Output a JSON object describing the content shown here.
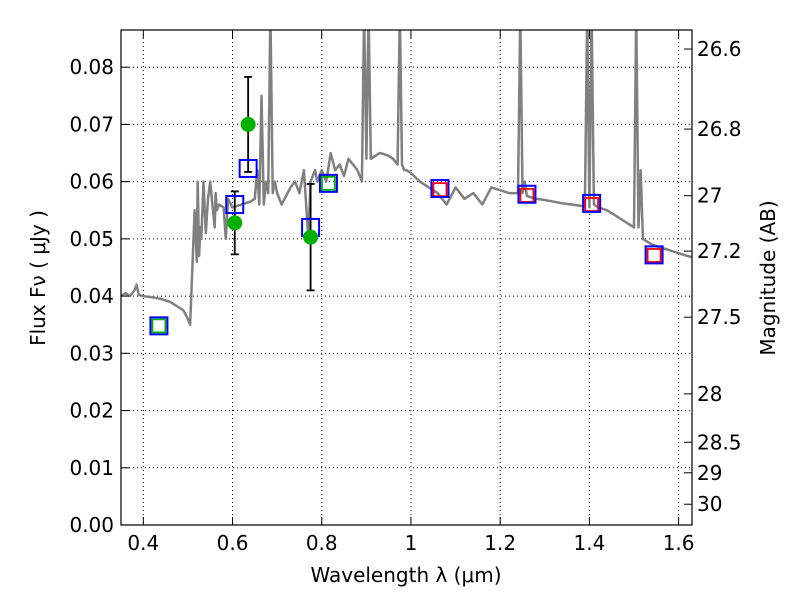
{
  "chart_data": {
    "type": "line",
    "xlabel": "Wavelength  λ (μm)",
    "ylabel": "Flux  Fν  ( μJy )",
    "ylabel_right": "Magnitude (AB)",
    "xlim": [
      0.35,
      1.63
    ],
    "ylim": [
      0.0,
      0.0865
    ],
    "grid": true,
    "x_ticks": [
      0.4,
      0.6,
      0.8,
      1.0,
      1.2,
      1.4,
      1.6
    ],
    "x_tick_labels": [
      "0.4",
      "0.6",
      "0.8",
      "1",
      "1.2",
      "1.4",
      "1.6"
    ],
    "y_ticks": [
      0.0,
      0.01,
      0.02,
      0.03,
      0.04,
      0.05,
      0.06,
      0.07,
      0.08
    ],
    "y_tick_labels": [
      "0.00",
      "0.01",
      "0.02",
      "0.03",
      "0.04",
      "0.05",
      "0.06",
      "0.07",
      "0.08"
    ],
    "mag_ticks": [
      26.6,
      26.8,
      27,
      27.2,
      27.5,
      28,
      28.5,
      29,
      30
    ],
    "mag_tick_labels": [
      "26.6",
      "26.8",
      "27",
      "27.2",
      "27.5",
      "28",
      "28.5",
      "29",
      "30"
    ],
    "series": [
      {
        "kind": "model_sed",
        "color": "#808080",
        "x": [
          0.35,
          0.36,
          0.37,
          0.38,
          0.385,
          0.39,
          0.4,
          0.42,
          0.44,
          0.46,
          0.48,
          0.49,
          0.5,
          0.505,
          0.51,
          0.515,
          0.52,
          0.522,
          0.525,
          0.528,
          0.53,
          0.535,
          0.54,
          0.545,
          0.55,
          0.555,
          0.56,
          0.562,
          0.565,
          0.57,
          0.58,
          0.585,
          0.59,
          0.6,
          0.62,
          0.64,
          0.65,
          0.655,
          0.66,
          0.665,
          0.67,
          0.675,
          0.68,
          0.685,
          0.69,
          0.695,
          0.7,
          0.71,
          0.72,
          0.73,
          0.74,
          0.75,
          0.76,
          0.77,
          0.775,
          0.78,
          0.785,
          0.79,
          0.8,
          0.81,
          0.82,
          0.83,
          0.84,
          0.85,
          0.86,
          0.87,
          0.88,
          0.89,
          0.895,
          0.9,
          0.905,
          0.91,
          0.92,
          0.93,
          0.94,
          0.95,
          0.96,
          0.97,
          0.975,
          0.98,
          0.985,
          0.99,
          1.0,
          1.02,
          1.04,
          1.06,
          1.08,
          1.1,
          1.12,
          1.14,
          1.16,
          1.18,
          1.2,
          1.22,
          1.24,
          1.245,
          1.25,
          1.255,
          1.26,
          1.28,
          1.3,
          1.32,
          1.34,
          1.36,
          1.38,
          1.39,
          1.395,
          1.4,
          1.405,
          1.41,
          1.42,
          1.44,
          1.46,
          1.48,
          1.5,
          1.505,
          1.51,
          1.515,
          1.52,
          1.54,
          1.56,
          1.58,
          1.6,
          1.62,
          1.63
        ],
        "y": [
          0.04,
          0.0405,
          0.04,
          0.041,
          0.042,
          0.0402,
          0.04,
          0.0398,
          0.0395,
          0.039,
          0.038,
          0.0375,
          0.036,
          0.035,
          0.045,
          0.055,
          0.046,
          0.06,
          0.047,
          0.052,
          0.05,
          0.06,
          0.051,
          0.057,
          0.06,
          0.056,
          0.052,
          0.058,
          0.055,
          0.056,
          0.0555,
          0.05,
          0.057,
          0.0555,
          0.056,
          0.0565,
          0.057,
          0.062,
          0.056,
          0.075,
          0.056,
          0.06,
          0.058,
          0.09,
          0.058,
          0.06,
          0.058,
          0.056,
          0.0575,
          0.059,
          0.06,
          0.058,
          0.062,
          0.05,
          0.06,
          0.061,
          0.062,
          0.06,
          0.062,
          0.06,
          0.065,
          0.062,
          0.063,
          0.061,
          0.064,
          0.063,
          0.062,
          0.06,
          0.09,
          0.064,
          0.09,
          0.064,
          0.0645,
          0.065,
          0.0648,
          0.0645,
          0.064,
          0.063,
          0.09,
          0.063,
          0.062,
          0.062,
          0.0615,
          0.06,
          0.059,
          0.058,
          0.056,
          0.059,
          0.057,
          0.058,
          0.056,
          0.059,
          0.0585,
          0.058,
          0.058,
          0.09,
          0.058,
          0.06,
          0.0575,
          0.057,
          0.0568,
          0.0565,
          0.0562,
          0.056,
          0.0558,
          0.0556,
          0.09,
          0.0555,
          0.09,
          0.056,
          0.0555,
          0.055,
          0.054,
          0.053,
          0.052,
          0.09,
          0.052,
          0.062,
          0.05,
          0.049,
          0.0485,
          0.048,
          0.0475,
          0.047,
          0.0468
        ]
      },
      {
        "kind": "observed_photometry",
        "color": "#00b000",
        "x": [
          0.605,
          0.635,
          0.775
        ],
        "y": [
          0.0528,
          0.07,
          0.0503
        ],
        "yerr": [
          0.0055,
          0.0083,
          0.0093
        ]
      },
      {
        "kind": "model_bandpass_blue",
        "color": "#0000ff",
        "x": [
          0.435,
          0.605,
          0.635,
          0.775,
          0.815,
          1.065,
          1.26,
          1.405,
          1.545
        ],
        "y": [
          0.0348,
          0.056,
          0.0623,
          0.052,
          0.0597,
          0.0588,
          0.0578,
          0.0562,
          0.0472
        ]
      },
      {
        "kind": "model_bandpass_red",
        "color": "#ff0000",
        "x": [
          1.065,
          1.26,
          1.405,
          1.545
        ],
        "y": [
          0.0586,
          0.0576,
          0.056,
          0.0471
        ]
      },
      {
        "kind": "model_bandpass_green",
        "color": "#00b000",
        "x": [
          0.435,
          0.815
        ],
        "y": [
          0.0348,
          0.0597
        ]
      }
    ]
  }
}
